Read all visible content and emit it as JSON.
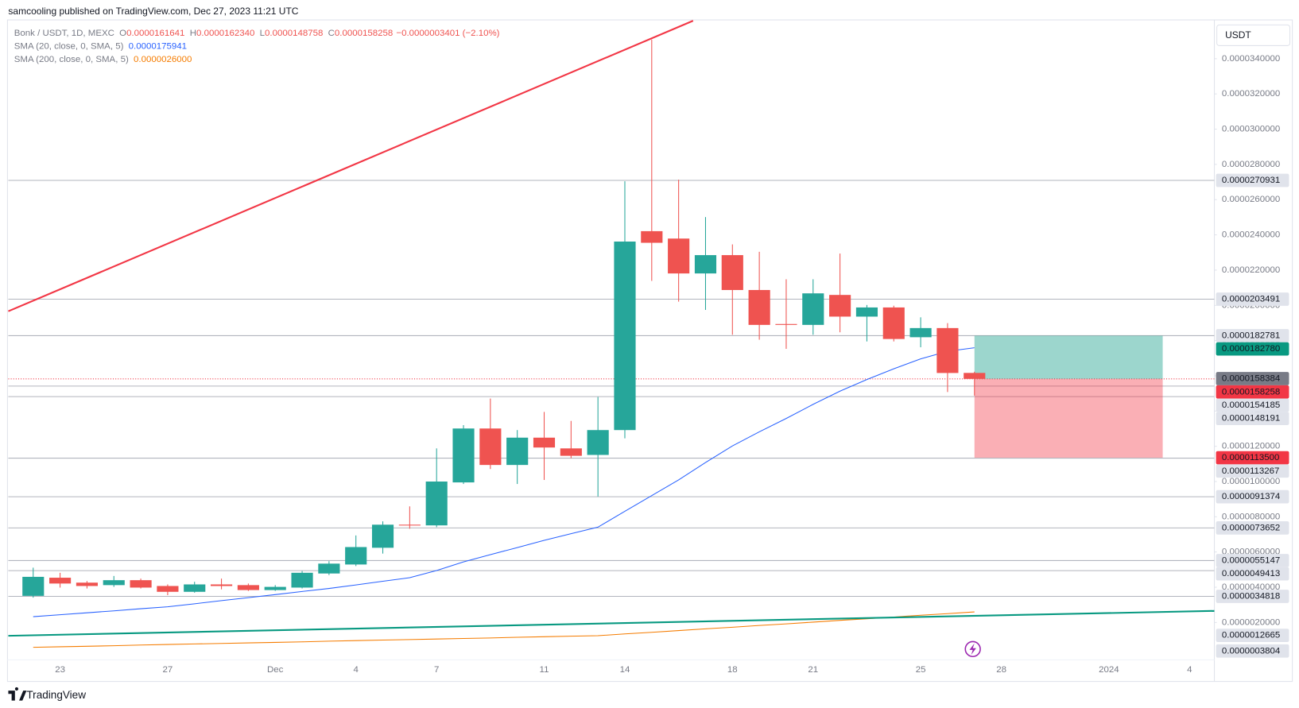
{
  "chart_data": {
    "type": "candlestick",
    "title": "samcooling published on TradingView.com, Dec 27, 2023 11:21 UTC",
    "symbol": "Bonk / USDT, 1D, MEXC",
    "ohlc_labels": [
      {
        "key": "O",
        "value": "0.0000161641"
      },
      {
        "key": "H",
        "value": "0.0000162340"
      },
      {
        "key": "L",
        "value": "0.0000148758"
      },
      {
        "key": "C",
        "value": "0.0000158258"
      }
    ],
    "change": "−0.0000003401 (−2.10%)",
    "currency": "USDT",
    "brand": "TradingView",
    "up_color": "#26a69a",
    "down_color": "#ef5350",
    "grid": false,
    "categories": [
      null,
      "23",
      null,
      null,
      null,
      "27",
      null,
      null,
      null,
      "Dec",
      null,
      null,
      "4",
      null,
      null,
      "7",
      null,
      null,
      null,
      "11",
      null,
      null,
      "14",
      null,
      null,
      null,
      "18",
      null,
      null,
      "21",
      null,
      null,
      null,
      "25",
      null,
      null,
      "28",
      null,
      null,
      null,
      "2024",
      null,
      null,
      "4"
    ],
    "open": [
      3.51e-06,
      4.54e-06,
      4.26e-06,
      4.12e-06,
      4.4e-06,
      4.07e-06,
      3.74e-06,
      4.16e-06,
      4.12e-06,
      3.84e-06,
      3.98e-06,
      4.78e-06,
      5.29e-06,
      6.24e-06,
      7.55e-06,
      7.51e-06,
      9.95e-06,
      1.301e-05,
      1.094e-05,
      1.249e-05,
      1.188e-05,
      1.151e-05,
      1.292e-05,
      2.421e-05,
      2.379e-05,
      2.181e-05,
      2.285e-05,
      2.087e-05,
      1.894e-05,
      1.889e-05,
      2.059e-05,
      1.936e-05,
      1.988e-05,
      1.819e-05,
      1.871e-05,
      1.61641e-05,
      null,
      null,
      null,
      null,
      null,
      null,
      null,
      null
    ],
    "high": [
      5.11e-06,
      4.82e-06,
      4.35e-06,
      4.64e-06,
      4.49e-06,
      4.16e-06,
      4.31e-06,
      4.49e-06,
      4.21e-06,
      4.12e-06,
      4.92e-06,
      5.48e-06,
      6.94e-06,
      7.74e-06,
      8.59e-06,
      1.188e-05,
      1.32e-05,
      1.471e-05,
      1.292e-05,
      1.395e-05,
      1.344e-05,
      1.48e-05,
      2.704e-05,
      3.508e-05,
      2.713e-05,
      2.501e-05,
      2.346e-05,
      2.304e-05,
      2.148e-05,
      2.148e-05,
      2.294e-05,
      2.002e-05,
      1.998e-05,
      1.932e-05,
      1.899e-05,
      1.6234e-05,
      null,
      null,
      null,
      null,
      null,
      null,
      null,
      null
    ],
    "low": [
      3.41e-06,
      3.98e-06,
      3.93e-06,
      4.02e-06,
      3.93e-06,
      3.55e-06,
      3.69e-06,
      3.88e-06,
      3.79e-06,
      3.79e-06,
      3.93e-06,
      4.69e-06,
      5.2e-06,
      5.91e-06,
      7.32e-06,
      7.41e-06,
      9.86e-06,
      1.071e-05,
      9.86e-06,
      1.009e-05,
      1.132e-05,
      9.15e-06,
      1.245e-05,
      2.139e-05,
      2.021e-05,
      1.974e-05,
      1.833e-05,
      1.805e-05,
      1.753e-05,
      1.833e-05,
      1.847e-05,
      1.795e-05,
      1.795e-05,
      1.762e-05,
      1.508e-05,
      1.48758e-05,
      null,
      null,
      null,
      null,
      null,
      null,
      null,
      null
    ],
    "close": [
      4.59e-06,
      4.21e-06,
      4.07e-06,
      4.4e-06,
      3.98e-06,
      3.74e-06,
      4.16e-06,
      4.07e-06,
      3.84e-06,
      4.02e-06,
      4.82e-06,
      5.34e-06,
      6.28e-06,
      7.55e-06,
      7.51e-06,
      1e-05,
      1.301e-05,
      1.094e-05,
      1.249e-05,
      1.193e-05,
      1.146e-05,
      1.292e-05,
      2.362e-05,
      2.355e-05,
      2.181e-05,
      2.285e-05,
      2.087e-05,
      1.889e-05,
      1.889e-05,
      2.068e-05,
      1.936e-05,
      1.988e-05,
      1.809e-05,
      1.871e-05,
      1.616e-05,
      1.58258e-05,
      null,
      null,
      null,
      null,
      null,
      null,
      null,
      null
    ],
    "series": [
      {
        "name": "SMA (20, close, 0, SMA, 5)",
        "color": "#2962ff",
        "value_label": "0.0000175941",
        "values": [
          2.33e-06,
          2.44e-06,
          2.55e-06,
          2.66e-06,
          2.78e-06,
          2.89e-06,
          3.06e-06,
          3.24e-06,
          3.41e-06,
          3.58e-06,
          3.76e-06,
          3.93e-06,
          4.13e-06,
          4.34e-06,
          4.54e-06,
          4.95e-06,
          5.44e-06,
          5.85e-06,
          6.25e-06,
          6.66e-06,
          7.04e-06,
          7.41e-06,
          8.31e-06,
          9.2e-06,
          1.009e-05,
          1.108e-05,
          1.202e-05,
          1.282e-05,
          1.358e-05,
          1.438e-05,
          1.513e-05,
          1.579e-05,
          1.64e-05,
          1.696e-05,
          1.739e-05,
          1.75941e-05,
          null,
          null,
          null,
          null,
          null,
          null,
          null,
          null
        ]
      },
      {
        "name": "SMA (200, close, 0, SMA, 5)",
        "color": "#f57c00",
        "value_label": "0.0000026000",
        "values": [
          5.9e-07,
          6.2e-07,
          6.5e-07,
          6.8e-07,
          7.2e-07,
          7.5e-07,
          7.8e-07,
          8.1e-07,
          8.4e-07,
          8.7e-07,
          9e-07,
          9.4e-07,
          9.7e-07,
          1e-06,
          1.03e-06,
          1.06e-06,
          1.09e-06,
          1.12e-06,
          1.16e-06,
          1.19e-06,
          1.22e-06,
          1.25e-06,
          1.35e-06,
          1.44e-06,
          1.54e-06,
          1.64e-06,
          1.73e-06,
          1.83e-06,
          1.92e-06,
          2.02e-06,
          2.12e-06,
          2.21e-06,
          2.31e-06,
          2.41e-06,
          2.5e-06,
          2.6e-06,
          null,
          null,
          null,
          null,
          null,
          null,
          null,
          null
        ]
      }
    ],
    "ylim": [
      -1.3e-06,
      3.62e-05
    ],
    "yticks": [
      {
        "value": 2e-06,
        "label": "0.0000020000"
      },
      {
        "value": 4e-06,
        "label": "0.0000040000"
      },
      {
        "value": 6e-06,
        "label": "0.0000060000"
      },
      {
        "value": 8e-06,
        "label": "0.0000080000"
      },
      {
        "value": 1e-05,
        "label": "0.0000100000"
      },
      {
        "value": 1.2e-05,
        "label": "0.0000120000"
      },
      {
        "value": 1.4e-05,
        "label": "0.0000140000"
      },
      {
        "value": 1.6e-05,
        "label": "0.0000160000"
      },
      {
        "value": 1.8e-05,
        "label": "0.0000180000"
      },
      {
        "value": 2e-05,
        "label": "0.0000200000"
      },
      {
        "value": 2.2e-05,
        "label": "0.0000220000"
      },
      {
        "value": 2.4e-05,
        "label": "0.0000240000"
      },
      {
        "value": 2.6e-05,
        "label": "0.0000260000"
      },
      {
        "value": 2.8e-05,
        "label": "0.0000280000"
      },
      {
        "value": 3e-05,
        "label": "0.0000300000"
      },
      {
        "value": 3.2e-05,
        "label": "0.0000320000"
      },
      {
        "value": 3.4e-05,
        "label": "0.0000340000"
      }
    ],
    "levels": [
      {
        "value": 2.70931e-05,
        "label": "0.0000270931",
        "color": "#e0e3eb",
        "text_color": "#131722",
        "line": "solid"
      },
      {
        "value": 2.03491e-05,
        "label": "0.0000203491",
        "color": "#e0e3eb",
        "text_color": "#131722",
        "line": "solid"
      },
      {
        "value": 1.82781e-05,
        "label": "0.0000182781",
        "color": "#e0e3eb",
        "text_color": "#131722",
        "line": "solid"
      },
      {
        "value": 1.8278e-05,
        "label": "0.0000182780",
        "color": "#089981",
        "text_color": "#ffffff",
        "line": "none"
      },
      {
        "value": 1.58384e-05,
        "label": "0.0000158384",
        "color": "#787b86",
        "text_color": "#ffffff",
        "line": "none"
      },
      {
        "value": 1.58258e-05,
        "label": "0.0000158258",
        "color": "#f23645",
        "text_color": "#ffffff",
        "line": "dotted"
      },
      {
        "value": 1.54185e-05,
        "label": "0.0000154185",
        "color": "#e0e3eb",
        "text_color": "#131722",
        "line": "solid"
      },
      {
        "value": 1.48191e-05,
        "label": "0.0000148191",
        "color": "#e0e3eb",
        "text_color": "#131722",
        "line": "solid"
      },
      {
        "value": 1.135e-05,
        "label": "0.0000113500",
        "color": "#f23645",
        "text_color": "#ffffff",
        "line": "none"
      },
      {
        "value": 1.13267e-05,
        "label": "0.0000113267",
        "color": "#e0e3eb",
        "text_color": "#131722",
        "line": "solid"
      },
      {
        "value": 9.1374e-06,
        "label": "0.0000091374",
        "color": "#e0e3eb",
        "text_color": "#131722",
        "line": "solid"
      },
      {
        "value": 7.3652e-06,
        "label": "0.0000073652",
        "color": "#e0e3eb",
        "text_color": "#131722",
        "line": "solid"
      },
      {
        "value": 5.5147e-06,
        "label": "0.0000055147",
        "color": "#e0e3eb",
        "text_color": "#131722",
        "line": "solid"
      },
      {
        "value": 4.9413e-06,
        "label": "0.0000049413",
        "color": "#e0e3eb",
        "text_color": "#131722",
        "line": "solid"
      },
      {
        "value": 3.4818e-06,
        "label": "0.0000034818",
        "color": "#e0e3eb",
        "text_color": "#131722",
        "line": "solid"
      },
      {
        "value": 1.2665e-06,
        "label": "0.0000012665",
        "color": "#e0e3eb",
        "text_color": "#131722",
        "line": "none"
      },
      {
        "value": 3.804e-07,
        "label": "0.0000003804",
        "color": "#e0e3eb",
        "text_color": "#131722",
        "line": "none"
      }
    ]
  }
}
